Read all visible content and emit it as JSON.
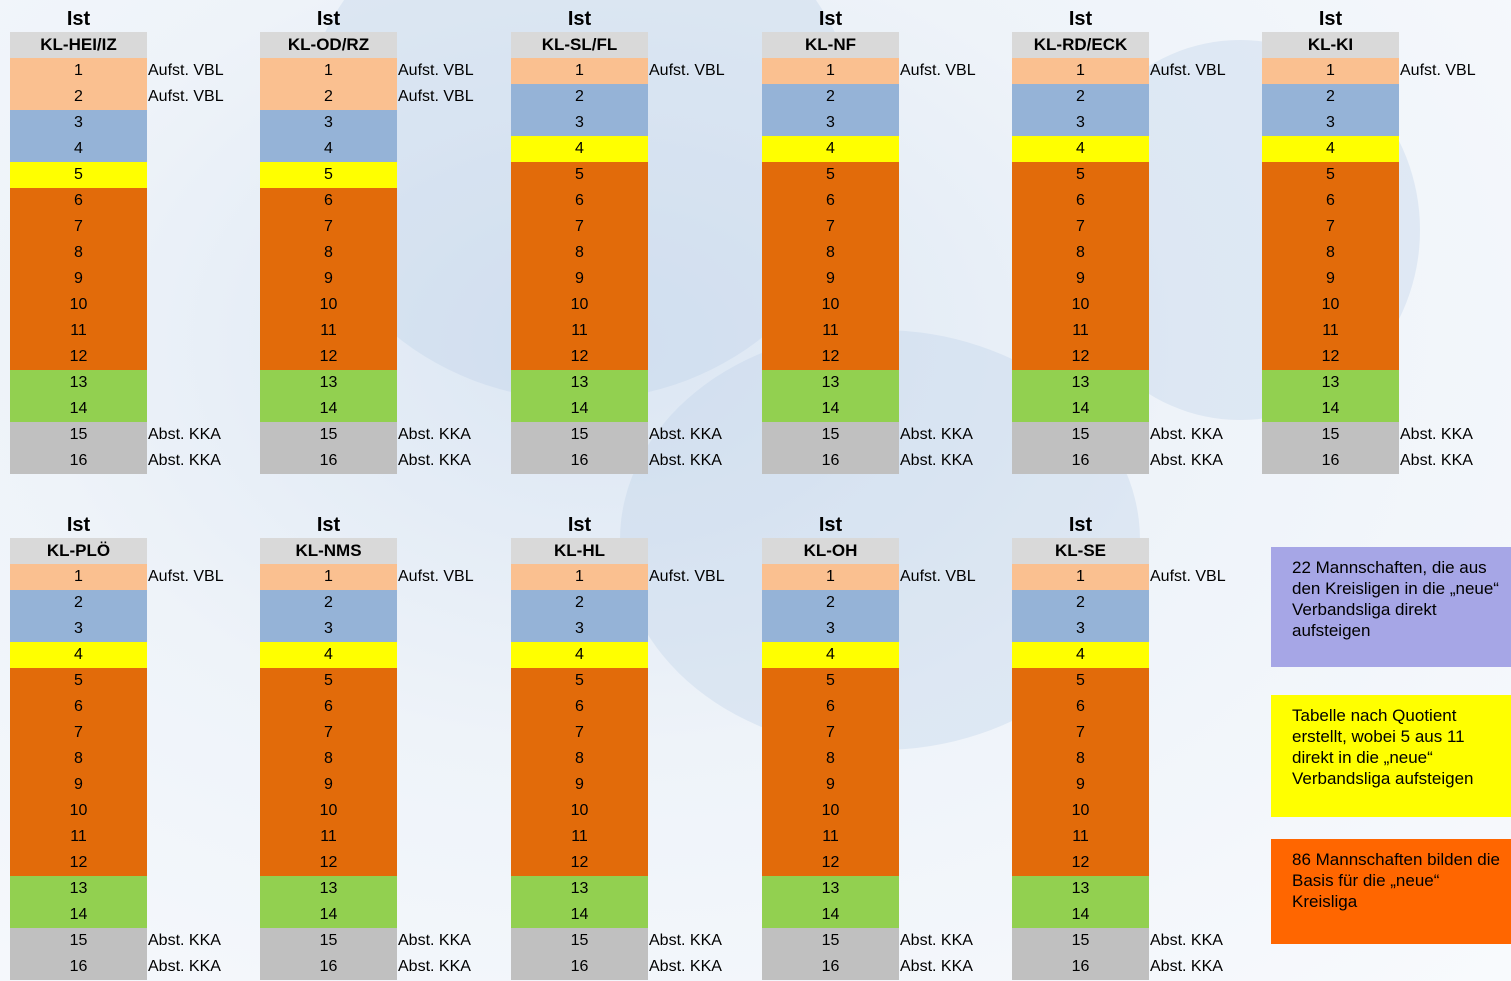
{
  "columns_top": [
    {
      "ist": "Ist",
      "name": "KL-HEI/IZ",
      "colors": [
        "salmon",
        "salmon",
        "blue",
        "blue",
        "yellow",
        "orange",
        "orange",
        "orange",
        "orange",
        "orange",
        "orange",
        "orange",
        "green",
        "green",
        "grey",
        "grey"
      ],
      "notes": [
        "Aufst. VBL",
        "Aufst. VBL",
        "",
        "",
        "",
        "",
        "",
        "",
        "",
        "",
        "",
        "",
        "",
        "",
        "Abst. KKA",
        "Abst. KKA"
      ]
    },
    {
      "ist": "Ist",
      "name": "KL-OD/RZ",
      "colors": [
        "salmon",
        "salmon",
        "blue",
        "blue",
        "yellow",
        "orange",
        "orange",
        "orange",
        "orange",
        "orange",
        "orange",
        "orange",
        "green",
        "green",
        "grey",
        "grey"
      ],
      "notes": [
        "Aufst. VBL",
        "Aufst. VBL",
        "",
        "",
        "",
        "",
        "",
        "",
        "",
        "",
        "",
        "",
        "",
        "",
        "Abst. KKA",
        "Abst. KKA"
      ]
    },
    {
      "ist": "Ist",
      "name": "KL-SL/FL",
      "colors": [
        "salmon",
        "blue",
        "blue",
        "yellow",
        "orange",
        "orange",
        "orange",
        "orange",
        "orange",
        "orange",
        "orange",
        "orange",
        "green",
        "green",
        "grey",
        "grey"
      ],
      "notes": [
        "Aufst. VBL",
        "",
        "",
        "",
        "",
        "",
        "",
        "",
        "",
        "",
        "",
        "",
        "",
        "",
        "Abst. KKA",
        "Abst. KKA"
      ]
    },
    {
      "ist": "Ist",
      "name": "KL-NF",
      "colors": [
        "salmon",
        "blue",
        "blue",
        "yellow",
        "orange",
        "orange",
        "orange",
        "orange",
        "orange",
        "orange",
        "orange",
        "orange",
        "green",
        "green",
        "grey",
        "grey"
      ],
      "notes": [
        "Aufst. VBL",
        "",
        "",
        "",
        "",
        "",
        "",
        "",
        "",
        "",
        "",
        "",
        "",
        "",
        "Abst. KKA",
        "Abst. KKA"
      ]
    },
    {
      "ist": "Ist",
      "name": "KL-RD/ECK",
      "colors": [
        "salmon",
        "blue",
        "blue",
        "yellow",
        "orange",
        "orange",
        "orange",
        "orange",
        "orange",
        "orange",
        "orange",
        "orange",
        "green",
        "green",
        "grey",
        "grey"
      ],
      "notes": [
        "Aufst. VBL",
        "",
        "",
        "",
        "",
        "",
        "",
        "",
        "",
        "",
        "",
        "",
        "",
        "",
        "Abst. KKA",
        "Abst. KKA"
      ]
    },
    {
      "ist": "Ist",
      "name": "KL-KI",
      "colors": [
        "salmon",
        "blue",
        "blue",
        "yellow",
        "orange",
        "orange",
        "orange",
        "orange",
        "orange",
        "orange",
        "orange",
        "orange",
        "green",
        "green",
        "grey",
        "grey"
      ],
      "notes": [
        "Aufst. VBL",
        "",
        "",
        "",
        "",
        "",
        "",
        "",
        "",
        "",
        "",
        "",
        "",
        "",
        "Abst. KKA",
        "Abst. KKA"
      ]
    }
  ],
  "columns_bottom": [
    {
      "ist": "Ist",
      "name": "KL-PLÖ",
      "colors": [
        "salmon",
        "blue",
        "blue",
        "yellow",
        "orange",
        "orange",
        "orange",
        "orange",
        "orange",
        "orange",
        "orange",
        "orange",
        "green",
        "green",
        "grey",
        "grey"
      ],
      "notes": [
        "Aufst. VBL",
        "",
        "",
        "",
        "",
        "",
        "",
        "",
        "",
        "",
        "",
        "",
        "",
        "",
        "Abst. KKA",
        "Abst. KKA"
      ]
    },
    {
      "ist": "Ist",
      "name": "KL-NMS",
      "colors": [
        "salmon",
        "blue",
        "blue",
        "yellow",
        "orange",
        "orange",
        "orange",
        "orange",
        "orange",
        "orange",
        "orange",
        "orange",
        "green",
        "green",
        "grey",
        "grey"
      ],
      "notes": [
        "Aufst. VBL",
        "",
        "",
        "",
        "",
        "",
        "",
        "",
        "",
        "",
        "",
        "",
        "",
        "",
        "Abst. KKA",
        "Abst. KKA"
      ]
    },
    {
      "ist": "Ist",
      "name": "KL-HL",
      "colors": [
        "salmon",
        "blue",
        "blue",
        "yellow",
        "orange",
        "orange",
        "orange",
        "orange",
        "orange",
        "orange",
        "orange",
        "orange",
        "green",
        "green",
        "grey",
        "grey"
      ],
      "notes": [
        "Aufst. VBL",
        "",
        "",
        "",
        "",
        "",
        "",
        "",
        "",
        "",
        "",
        "",
        "",
        "",
        "Abst. KKA",
        "Abst. KKA"
      ]
    },
    {
      "ist": "Ist",
      "name": "KL-OH",
      "colors": [
        "salmon",
        "blue",
        "blue",
        "yellow",
        "orange",
        "orange",
        "orange",
        "orange",
        "orange",
        "orange",
        "orange",
        "orange",
        "green",
        "green",
        "grey",
        "grey"
      ],
      "notes": [
        "Aufst. VBL",
        "",
        "",
        "",
        "",
        "",
        "",
        "",
        "",
        "",
        "",
        "",
        "",
        "",
        "Abst. KKA",
        "Abst. KKA"
      ]
    },
    {
      "ist": "Ist",
      "name": "KL-SE",
      "colors": [
        "salmon",
        "blue",
        "blue",
        "yellow",
        "orange",
        "orange",
        "orange",
        "orange",
        "orange",
        "orange",
        "orange",
        "orange",
        "green",
        "green",
        "grey",
        "grey"
      ],
      "notes": [
        "Aufst. VBL",
        "",
        "",
        "",
        "",
        "",
        "",
        "",
        "",
        "",
        "",
        "",
        "",
        "",
        "Abst. KKA",
        "Abst. KKA"
      ]
    }
  ],
  "ranks": [
    "1",
    "2",
    "3",
    "4",
    "5",
    "6",
    "7",
    "8",
    "9",
    "10",
    "11",
    "12",
    "13",
    "14",
    "15",
    "16"
  ],
  "palette": {
    "salmon": "#fac090",
    "blue": "#95b3d7",
    "yellow": "#ffff00",
    "orange": "#e26b0a",
    "green": "#92d050",
    "grey": "#c0c0c0"
  },
  "legend": [
    {
      "color": "#a6a6e6",
      "text": "22 Mannschaften, die aus den Kreisligen in die „neue“ Verbandsliga direkt aufsteigen"
    },
    {
      "color": "#ffff00",
      "text": "Tabelle nach Quotient erstellt, wobei 5 aus 11 direkt in die „neue“ Verbandsliga aufsteigen"
    },
    {
      "color": "#ff6600",
      "text": "86 Mannschaften bilden die Basis für die „neue“ Kreisliga"
    }
  ]
}
